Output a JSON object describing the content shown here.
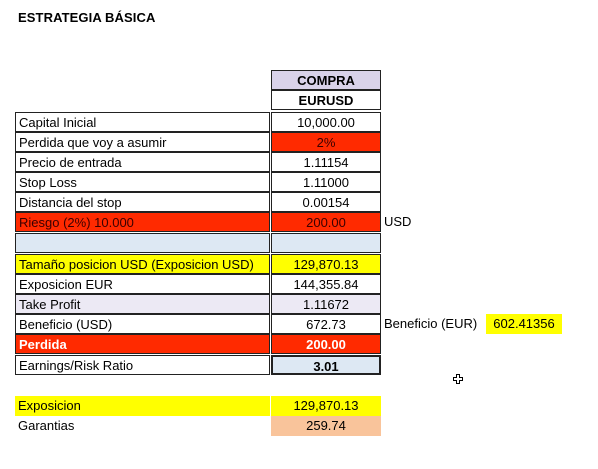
{
  "title": "ESTRATEGIA BÁSICA",
  "header": {
    "col1": "COMPRA",
    "col2": "EURUSD"
  },
  "rows": [
    {
      "label": "Capital Inicial",
      "value": "10,000.00"
    },
    {
      "label": "Perdida que voy a asumir",
      "value": "2%"
    },
    {
      "label": "Precio de entrada",
      "value": "1.11154"
    },
    {
      "label": "Stop Loss",
      "value": "1.11000"
    },
    {
      "label": "Distancia del stop",
      "value": "0.00154"
    },
    {
      "label": "Riesgo   (2%) 10.000",
      "value": "200.00",
      "suffix": "USD"
    },
    {
      "label": "",
      "value": ""
    },
    {
      "label": "Tamaño posicion  USD (Exposicion USD)",
      "value": "129,870.13"
    },
    {
      "label": "Exposicion EUR",
      "value": "144,355.84"
    },
    {
      "label": "Take Profit",
      "value": "1.11672"
    },
    {
      "label": "Beneficio (USD)",
      "value": "672.73",
      "side_label": "Beneficio (EUR)",
      "side_value": "602.41356"
    },
    {
      "label": "Perdida",
      "value": "200.00"
    },
    {
      "label": "Earnings/Risk   Ratio",
      "value": "3.01"
    }
  ],
  "bottom": [
    {
      "label": "Exposicion",
      "value": "129,870.13"
    },
    {
      "label": "Garantias",
      "value": "259.74"
    }
  ],
  "colors": {
    "header_bg": "#d9d2e9",
    "red": "#ff2a00",
    "yellow": "#ffff00",
    "light_blue": "#dde8f3",
    "lavender": "#ece9f4",
    "orange": "#f9c49b"
  }
}
